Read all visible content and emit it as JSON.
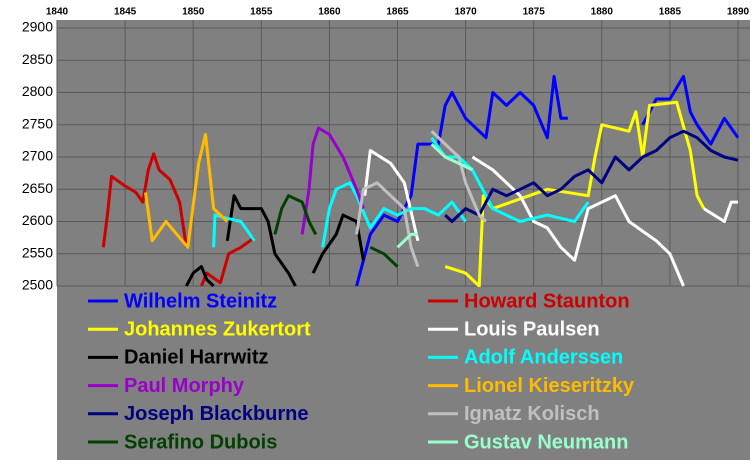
{
  "chart_data": {
    "type": "line",
    "xlim": [
      1840,
      1890
    ],
    "xticks": [
      1840,
      1845,
      1850,
      1855,
      1860,
      1865,
      1870,
      1875,
      1880,
      1885,
      1890
    ],
    "ylim": [
      2500,
      2900
    ],
    "yticks": [
      2500,
      2550,
      2600,
      2650,
      2700,
      2750,
      2800,
      2850,
      2900
    ],
    "grid": true,
    "series": [
      {
        "name": "Wilhelm Steinitz",
        "color": "#0000ff",
        "x": [
          1862,
          1863,
          1864,
          1865,
          1866,
          1866.5,
          1868,
          1868.5,
          1869,
          1870,
          1871.5,
          1872,
          1873,
          1874,
          1875,
          1876,
          1876.5,
          1877,
          1877.5,
          null,
          1883,
          1884,
          1885,
          1886,
          1886.5,
          1887,
          1888,
          1889,
          1890
        ],
        "values": [
          2500,
          2580,
          2610,
          2600,
          2640,
          2720,
          2720,
          2780,
          2800,
          2760,
          2730,
          2800,
          2780,
          2800,
          2780,
          2730,
          2825,
          2760,
          2760,
          null,
          2750,
          2790,
          2790,
          2825,
          2770,
          2750,
          2720,
          2760,
          2730
        ]
      },
      {
        "name": "Howard Staunton",
        "color": "#cc0000",
        "x": [
          1843.4,
          1843.7,
          1844,
          1845,
          1845.8,
          1846.3,
          1846.7,
          1847.1,
          1847.5,
          1848.3,
          1849,
          1849.5,
          null,
          1850.6,
          1851,
          1852,
          1852.6,
          1853.5,
          1854.5
        ],
        "values": [
          2560,
          2610,
          2670,
          2655,
          2645,
          2630,
          2680,
          2705,
          2680,
          2665,
          2630,
          2560,
          null,
          2500,
          2520,
          2505,
          2550,
          2560,
          2575
        ]
      },
      {
        "name": "Johannes Zukertort",
        "color": "#ffff00",
        "x": [
          1868.5,
          1870,
          1871,
          1871.3,
          1872,
          1876,
          1879,
          1879.5,
          1880,
          1882,
          1882.5,
          1883,
          1883.5,
          1885.5,
          1886.5,
          1887,
          1887.5
        ],
        "values": [
          2530,
          2520,
          2500,
          2640,
          2620,
          2650,
          2640,
          2700,
          2750,
          2740,
          2770,
          2700,
          2780,
          2785,
          2710,
          2640,
          2620
        ]
      },
      {
        "name": "Louis Paulsen",
        "color": "#ffffff",
        "x": [
          1862.6,
          1863,
          1864.5,
          1865.5,
          1866.5,
          null,
          1870.5,
          1872,
          1873,
          1874,
          1875,
          1876,
          1877,
          1878,
          1879,
          1881,
          1882,
          1884,
          1885,
          1886,
          null,
          1887.5,
          1889,
          1889.5,
          1890
        ],
        "values": [
          2640,
          2710,
          2690,
          2660,
          2570,
          null,
          2700,
          2680,
          2660,
          2640,
          2600,
          2590,
          2560,
          2540,
          2620,
          2640,
          2600,
          2570,
          2550,
          2500,
          null,
          2620,
          2600,
          2630,
          2630
        ]
      },
      {
        "name": "Daniel Harrwitz",
        "color": "#000000",
        "x": [
          1849.5,
          1850,
          1850.6,
          1851,
          1851.5,
          null,
          1852.5,
          1853,
          1853.5,
          1855,
          1855.5,
          1856,
          1857,
          1857.5,
          null,
          1858.8,
          1859.5,
          1860.5,
          1861,
          1862,
          1862.5
        ],
        "values": [
          2500,
          2520,
          2530,
          2510,
          2500,
          null,
          2570,
          2640,
          2620,
          2620,
          2600,
          2550,
          2520,
          2500,
          null,
          2520,
          2550,
          2580,
          2610,
          2600,
          2540
        ]
      },
      {
        "name": "Adolf Anderssen",
        "color": "#00ffff",
        "x": [
          1851.5,
          1851.6,
          1852.5,
          1853.5,
          1854.5,
          null,
          1859.5,
          1860,
          1860.5,
          1861.5,
          1862,
          1863,
          1864,
          1865,
          1866,
          1867,
          1868,
          1869,
          1870,
          null,
          1867.5,
          1868.5,
          1869.5,
          1870.5,
          1871,
          1872,
          1873,
          1874,
          1876,
          1878,
          1879
        ],
        "values": [
          2560,
          2610,
          2605,
          2600,
          2570,
          null,
          2560,
          2620,
          2650,
          2660,
          2640,
          2590,
          2620,
          2610,
          2620,
          2620,
          2610,
          2630,
          2600,
          null,
          2730,
          2700,
          2700,
          2680,
          2660,
          2620,
          2610,
          2600,
          2610,
          2600,
          2630
        ]
      },
      {
        "name": "Paul Morphy",
        "color": "#9900cc",
        "x": [
          1858,
          1858.5,
          1858.8,
          1859.2,
          1860,
          1861,
          1862,
          1862.5
        ],
        "values": [
          2580,
          2650,
          2720,
          2745,
          2735,
          2700,
          2650,
          2620
        ]
      },
      {
        "name": "Lionel Kieseritzky",
        "color": "#ffbb00",
        "x": [
          1846.5,
          1847,
          1848,
          1849.6,
          1850.4,
          1850.9,
          1851.5,
          1852.5
        ],
        "values": [
          2645,
          2570,
          2600,
          2560,
          2690,
          2735,
          2620,
          2600
        ]
      },
      {
        "name": "Joseph Blackburne",
        "color": "#000080",
        "x": [
          1868.5,
          1869,
          1870,
          1871,
          1872,
          1873,
          1874,
          1875,
          1876,
          1877,
          1878,
          1879,
          1880,
          1881,
          1882,
          1883,
          1884,
          1885,
          1886,
          1887,
          1888,
          1889,
          1890
        ],
        "values": [
          2610,
          2600,
          2620,
          2610,
          2650,
          2640,
          2650,
          2660,
          2640,
          2650,
          2670,
          2680,
          2660,
          2700,
          2680,
          2700,
          2710,
          2730,
          2740,
          2730,
          2710,
          2700,
          2695
        ]
      },
      {
        "name": "Ignatz Kolisch",
        "color": "#c0c0c0",
        "x": [
          1862,
          1862.5,
          1863.5,
          1864.5,
          1865.5,
          1866,
          1866.5,
          null,
          1867.5,
          1868.5,
          1869.5,
          1870,
          1871,
          1871.5
        ],
        "values": [
          2580,
          2650,
          2660,
          2640,
          2620,
          2560,
          2530,
          null,
          2740,
          2720,
          2700,
          2660,
          2610,
          2600
        ]
      },
      {
        "name": "Serafino Dubois",
        "color": "#004000",
        "x": [
          1856,
          1856.5,
          1857,
          1858,
          1858.5,
          1859,
          null,
          1863,
          1864,
          1865
        ],
        "values": [
          2580,
          2620,
          2640,
          2630,
          2600,
          2580,
          null,
          2560,
          2550,
          2530
        ]
      },
      {
        "name": "Gustav Neumann",
        "color": "#99ffcc",
        "x": [
          1865,
          1866,
          1866.5,
          null,
          1867.5,
          1868.5,
          1869.5,
          1870.5
        ],
        "values": [
          2560,
          2580,
          2580,
          null,
          2720,
          2700,
          2690,
          2680
        ]
      }
    ]
  }
}
